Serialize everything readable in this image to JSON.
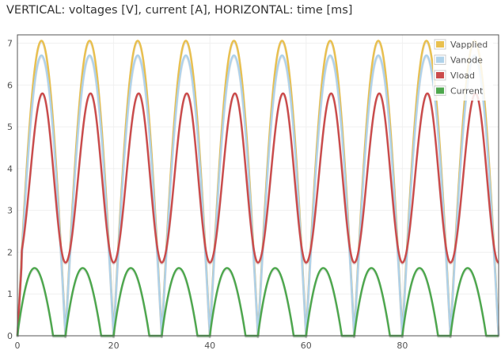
{
  "header": {
    "title": "VERTICAL: voltages [V], current [A], HORIZONTAL: time [ms]"
  },
  "chart_data": {
    "type": "line",
    "title": "VERTICAL: voltages [V], current [A], HORIZONTAL: time [ms]",
    "xlabel": "time [ms]",
    "ylabel": "voltages [V], current [A]",
    "xlim": [
      0,
      100
    ],
    "ylim": [
      0,
      7.2
    ],
    "x_ticks": [
      0,
      20,
      40,
      60,
      80
    ],
    "y_ticks": [
      0,
      1,
      2,
      3,
      4,
      5,
      6,
      7
    ],
    "grid": true,
    "legend_position": "top-right",
    "series": [
      {
        "name": "Vapplied",
        "color": "#e9c04f",
        "description": "full-wave rectified sine, period 10 ms",
        "x": [
          0,
          1,
          2,
          3,
          4,
          5,
          6,
          7,
          8,
          9,
          10
        ],
        "values": [
          0,
          2.18,
          4.15,
          5.71,
          6.71,
          7.06,
          6.71,
          5.71,
          4.15,
          2.18,
          0
        ]
      },
      {
        "name": "Vanode",
        "color": "#afd2ea",
        "x": [
          0,
          1,
          2,
          3,
          4,
          5,
          6,
          7,
          8,
          9,
          10
        ],
        "values": [
          0,
          2.08,
          3.95,
          5.43,
          6.38,
          6.71,
          6.38,
          5.43,
          3.95,
          2.08,
          0
        ]
      },
      {
        "name": "Vload",
        "color": "#cb4b4b",
        "x": [
          0,
          1,
          2,
          3,
          4,
          5,
          6,
          7,
          8,
          9,
          10
        ],
        "values": [
          1.75,
          2.35,
          3.9,
          5.2,
          5.72,
          5.8,
          5.2,
          4.2,
          3.1,
          2.2,
          1.75
        ]
      },
      {
        "name": "Current",
        "color": "#4da74d",
        "x": [
          0,
          1,
          2,
          3,
          4,
          5,
          6,
          7,
          8,
          9,
          10
        ],
        "values": [
          0,
          1.6,
          1.75,
          1.65,
          1.45,
          1.1,
          0.7,
          0.3,
          0,
          0,
          0
        ]
      }
    ]
  }
}
